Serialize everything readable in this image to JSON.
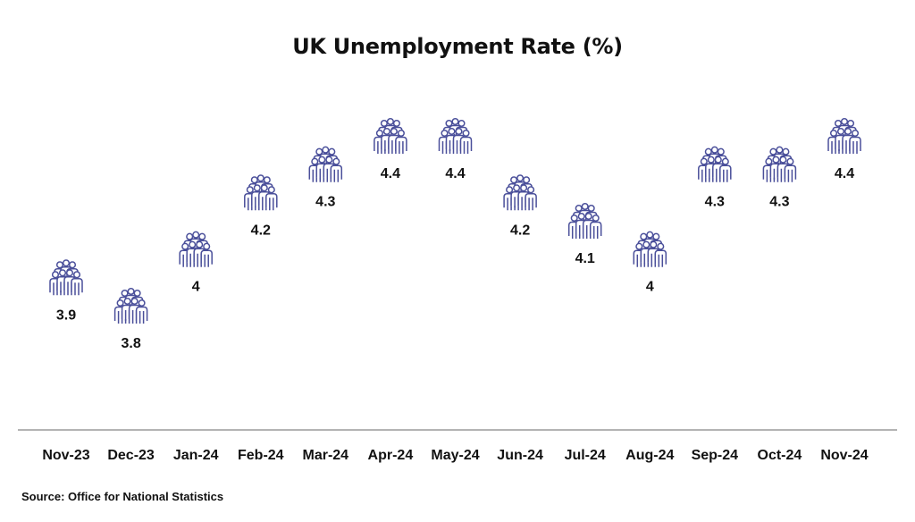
{
  "chart_data": {
    "type": "scatter",
    "title": "UK Unemployment Rate (%)",
    "xlabel": "",
    "ylabel": "",
    "categories": [
      "Nov-23",
      "Dec-23",
      "Jan-24",
      "Feb-24",
      "Mar-24",
      "Apr-24",
      "May-24",
      "Jun-24",
      "Jul-24",
      "Aug-24",
      "Sep-24",
      "Oct-24",
      "Nov-24"
    ],
    "values": [
      3.9,
      3.8,
      4,
      4.2,
      4.3,
      4.4,
      4.4,
      4.2,
      4.1,
      4,
      4.3,
      4.3,
      4.4
    ],
    "value_labels": [
      "3.9",
      "3.8",
      "4",
      "4.2",
      "4.3",
      "4.4",
      "4.4",
      "4.2",
      "4.1",
      "4",
      "4.3",
      "4.3",
      "4.4"
    ],
    "marker_icon": "people-group-icon",
    "marker_color": "#4a4f9a",
    "axis_color": "#9a9a9a",
    "grid": false,
    "legend": "none"
  },
  "footer": {
    "source": "Source: Office for National Statistics"
  }
}
